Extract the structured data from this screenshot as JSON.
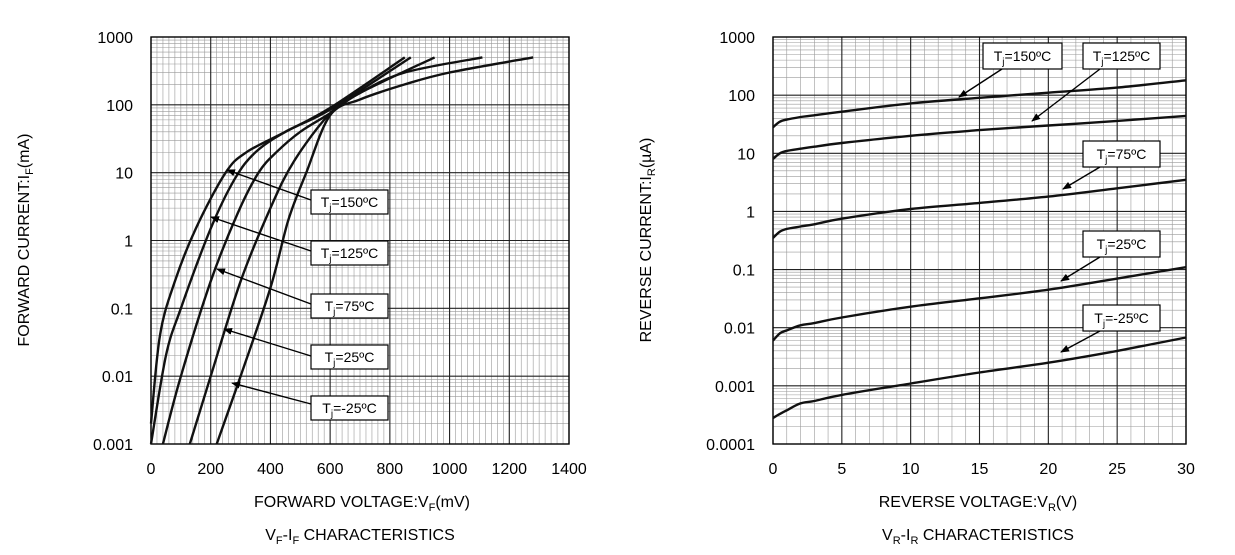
{
  "chart_data": [
    {
      "type": "line",
      "title": "VF-IF CHARACTERISTICS",
      "xlabel": "FORWARD VOLTAGE:VF(mV)",
      "ylabel": "FORWARD CURRENT:IF(mA)",
      "xlim": [
        0,
        1400
      ],
      "ylim": [
        0.001,
        1000
      ],
      "yscale": "log",
      "grid": true,
      "x_ticks": [
        "0",
        "200",
        "400",
        "600",
        "800",
        "1000",
        "1200",
        "1400"
      ],
      "y_ticks": [
        "0.001",
        "0.01",
        "0.1",
        "1",
        "10",
        "100",
        "1000"
      ],
      "labels": {
        "title_main": "V",
        "title_sub1": "F",
        "title_mid": "-I",
        "title_sub2": "F",
        "title_end": " CHARACTERISTICS",
        "x_main": "FORWARD VOLTAGE:V",
        "x_sub": "F",
        "x_end": "(mV)",
        "y_main": "FORWARD CURRENT:I",
        "y_sub": "F",
        "y_end": "(mA)"
      },
      "series": [
        {
          "name": "Tj=150ºC",
          "label_prefix": "T",
          "label_sub": "j",
          "label_rest": "=150ºC",
          "x": [
            0,
            30,
            80,
            150,
            250,
            320,
            450,
            600,
            850
          ],
          "y": [
            0.002,
            0.04,
            0.25,
            1.5,
            10,
            20,
            40,
            90,
            500
          ]
        },
        {
          "name": "Tj=125ºC",
          "label_prefix": "T",
          "label_sub": "j",
          "label_rest": "=125ºC",
          "x": [
            0,
            50,
            100,
            200,
            280,
            350,
            450,
            600,
            870
          ],
          "y": [
            0.001,
            0.02,
            0.1,
            1.5,
            8,
            20,
            40,
            85,
            500
          ]
        },
        {
          "name": "Tj=75ºC",
          "label_prefix": "T",
          "label_sub": "j",
          "label_rest": "=75ºC",
          "x": [
            40,
            100,
            200,
            290,
            360,
            420,
            500,
            600,
            700,
            950
          ],
          "y": [
            0.001,
            0.01,
            0.25,
            2.5,
            10,
            20,
            40,
            75,
            150,
            500
          ]
        },
        {
          "name": "Tj=25ºC",
          "label_prefix": "T",
          "label_sub": "j",
          "label_rest": "=25ºC",
          "x": [
            130,
            200,
            300,
            400,
            480,
            600,
            700,
            850,
            1110
          ],
          "y": [
            0.001,
            0.01,
            0.25,
            3,
            15,
            75,
            150,
            300,
            500
          ]
        },
        {
          "name": "Tj=-25ºC",
          "label_prefix": "T",
          "label_sub": "j",
          "label_rest": "=-25ºC",
          "x": [
            220,
            300,
            400,
            460,
            520,
            600,
            700,
            850,
            1000,
            1280
          ],
          "y": [
            0.001,
            0.01,
            0.2,
            2,
            10,
            70,
            120,
            200,
            300,
            500
          ]
        }
      ]
    },
    {
      "type": "line",
      "title": "VR-IR CHARACTERISTICS",
      "xlabel": "REVERSE VOLTAGE:VR(V)",
      "ylabel": "REVERSE CURRENT:IR(µA)",
      "xlim": [
        0,
        30
      ],
      "ylim": [
        0.0001,
        1000
      ],
      "yscale": "log",
      "grid": true,
      "x_ticks": [
        "0",
        "5",
        "10",
        "15",
        "20",
        "25",
        "30"
      ],
      "y_ticks": [
        "0.0001",
        "0.001",
        "0.01",
        "0.1",
        "1",
        "10",
        "100",
        "1000"
      ],
      "labels": {
        "title_main": "V",
        "title_sub1": "R",
        "title_mid": "-I",
        "title_sub2": "R",
        "title_end": " CHARACTERISTICS",
        "x_main": "REVERSE VOLTAGE:V",
        "x_sub": "R",
        "x_end": "(V)",
        "y_main": "REVERSE CURRENT:I",
        "y_sub": "R",
        "y_end": "(µA)"
      },
      "series": [
        {
          "name": "Tj=150ºC",
          "label_prefix": "T",
          "label_sub": "j",
          "label_rest": "=150ºC",
          "x": [
            0,
            0.5,
            1,
            2,
            3,
            5,
            10,
            15,
            20,
            25,
            30
          ],
          "y": [
            28,
            35,
            38,
            42,
            45,
            52,
            72,
            90,
            110,
            135,
            180
          ]
        },
        {
          "name": "Tj=125ºC",
          "label_prefix": "T",
          "label_sub": "j",
          "label_rest": "=125ºC",
          "x": [
            0,
            0.5,
            1,
            2,
            3,
            5,
            10,
            15,
            20,
            25,
            30
          ],
          "y": [
            8,
            10,
            11,
            12,
            13,
            15,
            20,
            25,
            30,
            36,
            44
          ]
        },
        {
          "name": "Tj=75ºC",
          "label_prefix": "T",
          "label_sub": "j",
          "label_rest": "=75ºC",
          "x": [
            0,
            0.5,
            1,
            2,
            3,
            5,
            10,
            15,
            20,
            25,
            30
          ],
          "y": [
            0.35,
            0.45,
            0.5,
            0.55,
            0.6,
            0.75,
            1.1,
            1.4,
            1.8,
            2.5,
            3.5
          ]
        },
        {
          "name": "Tj=25ºC",
          "label_prefix": "T",
          "label_sub": "j",
          "label_rest": "=25ºC",
          "x": [
            0,
            0.5,
            1,
            2,
            3,
            5,
            10,
            15,
            20,
            25,
            30
          ],
          "y": [
            0.006,
            0.008,
            0.009,
            0.011,
            0.012,
            0.015,
            0.023,
            0.032,
            0.045,
            0.07,
            0.11
          ]
        },
        {
          "name": "Tj=-25ºC",
          "label_prefix": "T",
          "label_sub": "j",
          "label_rest": "=-25ºC",
          "x": [
            0,
            0.5,
            1,
            2,
            3,
            5,
            10,
            15,
            20,
            25,
            30
          ],
          "y": [
            0.00028,
            0.00033,
            0.00038,
            0.0005,
            0.00055,
            0.0007,
            0.0011,
            0.0017,
            0.0025,
            0.004,
            0.0068
          ]
        }
      ]
    }
  ]
}
